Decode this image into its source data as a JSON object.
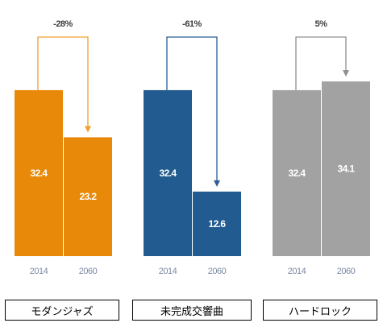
{
  "chart_data": [
    {
      "type": "bar",
      "title": "モダンジャズ",
      "categories": [
        "2014",
        "2060"
      ],
      "values": [
        32.4,
        23.2
      ],
      "change_label": "-28%",
      "color": "#E8890A",
      "arrow_color": "#F0A02E"
    },
    {
      "type": "bar",
      "title": "未完成交響曲",
      "categories": [
        "2014",
        "2060"
      ],
      "values": [
        32.4,
        12.6
      ],
      "change_label": "-61%",
      "color": "#215B8F",
      "arrow_color": "#2A5F94"
    },
    {
      "type": "bar",
      "title": "ハードロック",
      "categories": [
        "2014",
        "2060"
      ],
      "values": [
        32.4,
        34.1
      ],
      "change_label": "5%",
      "color": "#A2A2A2",
      "arrow_color": "#8F8F8F"
    }
  ]
}
